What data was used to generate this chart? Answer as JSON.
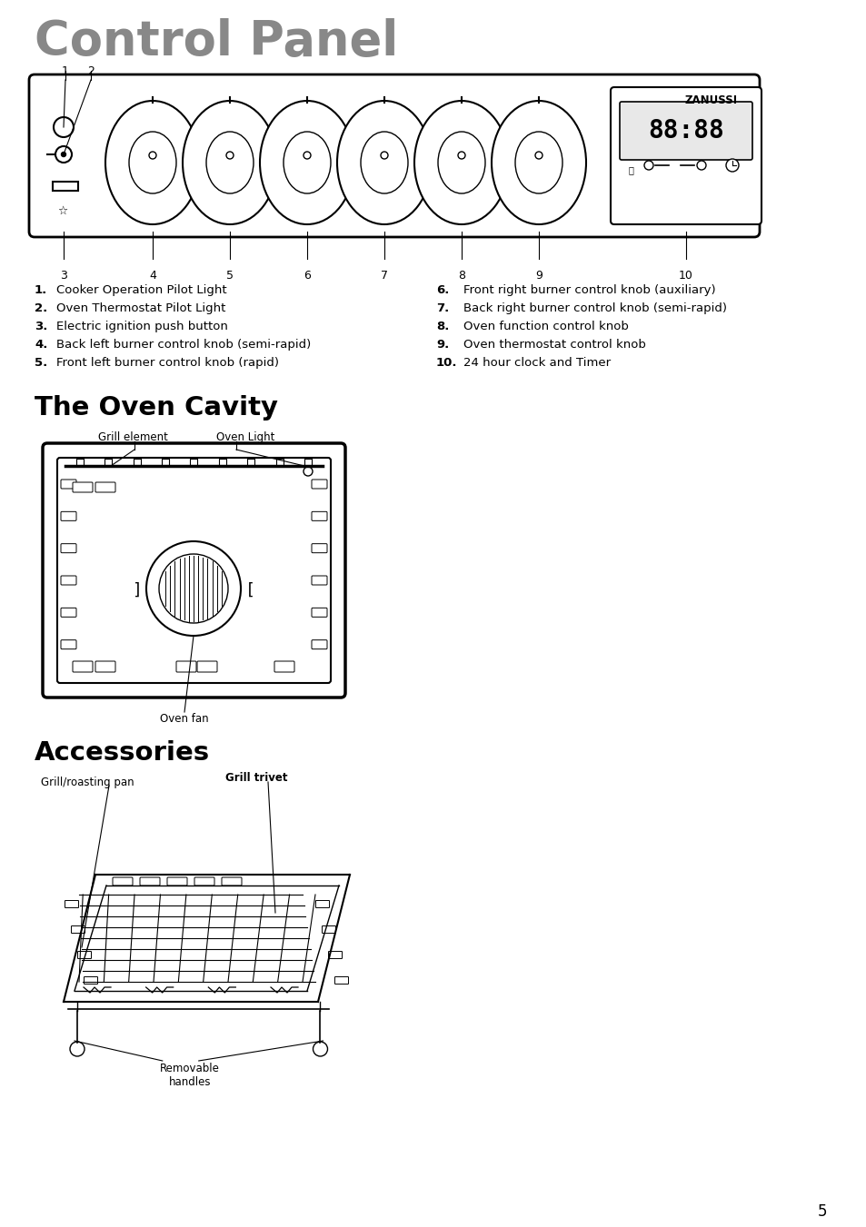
{
  "title": "Control Panel",
  "title_color": "#888888",
  "section2_title": "The Oven Cavity",
  "section3_title": "Accessories",
  "bg_color": "#ffffff",
  "text_color": "#000000",
  "list_items_left": [
    [
      "1.",
      "Cooker Operation Pilot Light"
    ],
    [
      "2.",
      "Oven Thermostat Pilot Light"
    ],
    [
      "3.",
      "Electric ignition push button"
    ],
    [
      "4.",
      "Back left burner control knob (semi-rapid)"
    ],
    [
      "5.",
      "Front left burner control knob (rapid)"
    ]
  ],
  "list_items_right": [
    [
      "6.",
      "Front right burner control knob (auxiliary)"
    ],
    [
      "7.",
      "Back right burner control knob (semi-rapid)"
    ],
    [
      "8.",
      "Oven function control knob"
    ],
    [
      "9.",
      "Oven thermostat control knob"
    ],
    [
      "10.",
      "24 hour clock and Timer"
    ]
  ],
  "page_number": "5"
}
